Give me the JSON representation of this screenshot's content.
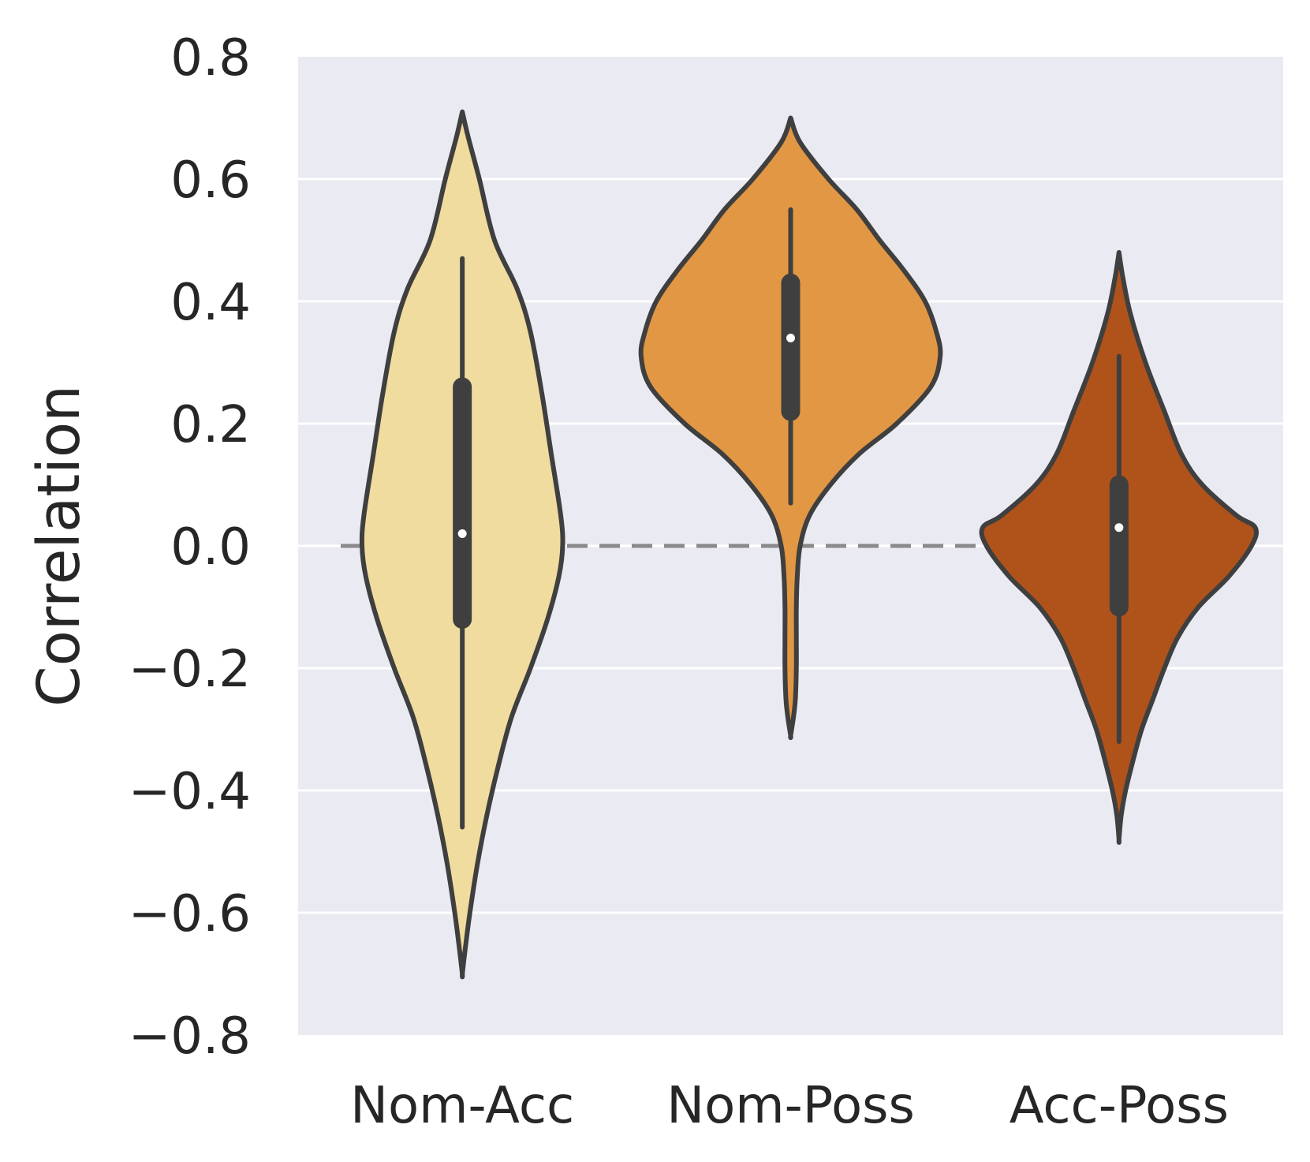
{
  "chart_data": {
    "type": "violin",
    "title": "",
    "xlabel": "",
    "ylabel": "Correlation",
    "ylim": [
      -0.8,
      0.8
    ],
    "yticks": [
      0.8,
      0.6,
      0.4,
      0.2,
      0.0,
      -0.2,
      -0.4,
      -0.6,
      -0.8
    ],
    "ytick_labels": [
      "0.8",
      "0.6",
      "0.4",
      "0.2",
      "0.0",
      "−0.2",
      "−0.4",
      "−0.6",
      "−0.8"
    ],
    "categories": [
      "Nom-Acc",
      "Nom-Poss",
      "Acc-Poss"
    ],
    "grid": true,
    "legend": "none",
    "reference_line": {
      "y": 0.0,
      "style": "dashed",
      "color": "#8a8a8a"
    },
    "background_color": "#eaeaf2",
    "outline_color": "#3f3f3f",
    "series": [
      {
        "category": "Nom-Acc",
        "color": "#f1dc9f",
        "min": -0.7,
        "max": 0.71,
        "whisker_low": -0.46,
        "whisker_high": 0.47,
        "q1": -0.12,
        "q3": 0.26,
        "median": 0.02,
        "density": [
          [
            0.71,
            0.0
          ],
          [
            0.67,
            0.03
          ],
          [
            0.6,
            0.09
          ],
          [
            0.5,
            0.17
          ],
          [
            0.42,
            0.29
          ],
          [
            0.35,
            0.36
          ],
          [
            0.25,
            0.42
          ],
          [
            0.15,
            0.47
          ],
          [
            0.05,
            0.52
          ],
          [
            0.0,
            0.53
          ],
          [
            -0.05,
            0.51
          ],
          [
            -0.12,
            0.45
          ],
          [
            -0.2,
            0.36
          ],
          [
            -0.28,
            0.26
          ],
          [
            -0.36,
            0.19
          ],
          [
            -0.44,
            0.13
          ],
          [
            -0.52,
            0.08
          ],
          [
            -0.6,
            0.04
          ],
          [
            -0.66,
            0.015
          ],
          [
            -0.7,
            0.0
          ]
        ]
      },
      {
        "category": "Nom-Poss",
        "color": "#e29744",
        "min": -0.31,
        "max": 0.7,
        "whisker_low": 0.07,
        "whisker_high": 0.55,
        "q1": 0.22,
        "q3": 0.43,
        "median": 0.34,
        "density": [
          [
            0.7,
            0.0
          ],
          [
            0.66,
            0.05
          ],
          [
            0.6,
            0.2
          ],
          [
            0.55,
            0.35
          ],
          [
            0.5,
            0.47
          ],
          [
            0.45,
            0.6
          ],
          [
            0.4,
            0.71
          ],
          [
            0.35,
            0.77
          ],
          [
            0.31,
            0.79
          ],
          [
            0.26,
            0.74
          ],
          [
            0.2,
            0.56
          ],
          [
            0.15,
            0.36
          ],
          [
            0.1,
            0.21
          ],
          [
            0.05,
            0.1
          ],
          [
            0.0,
            0.05
          ],
          [
            -0.05,
            0.035
          ],
          [
            -0.1,
            0.03
          ],
          [
            -0.15,
            0.03
          ],
          [
            -0.2,
            0.03
          ],
          [
            -0.25,
            0.025
          ],
          [
            -0.28,
            0.015
          ],
          [
            -0.31,
            0.0
          ]
        ]
      },
      {
        "category": "Acc-Poss",
        "color": "#b0531b",
        "min": -0.48,
        "max": 0.48,
        "whisker_low": -0.32,
        "whisker_high": 0.31,
        "q1": -0.1,
        "q3": 0.1,
        "median": 0.03,
        "density": [
          [
            0.48,
            0.0
          ],
          [
            0.44,
            0.02
          ],
          [
            0.38,
            0.06
          ],
          [
            0.3,
            0.14
          ],
          [
            0.22,
            0.24
          ],
          [
            0.15,
            0.33
          ],
          [
            0.1,
            0.44
          ],
          [
            0.05,
            0.62
          ],
          [
            0.03,
            0.72
          ],
          [
            0.0,
            0.7
          ],
          [
            -0.05,
            0.58
          ],
          [
            -0.1,
            0.42
          ],
          [
            -0.15,
            0.31
          ],
          [
            -0.2,
            0.24
          ],
          [
            -0.25,
            0.18
          ],
          [
            -0.3,
            0.12
          ],
          [
            -0.35,
            0.075
          ],
          [
            -0.4,
            0.035
          ],
          [
            -0.44,
            0.012
          ],
          [
            -0.48,
            0.0
          ]
        ]
      }
    ]
  }
}
